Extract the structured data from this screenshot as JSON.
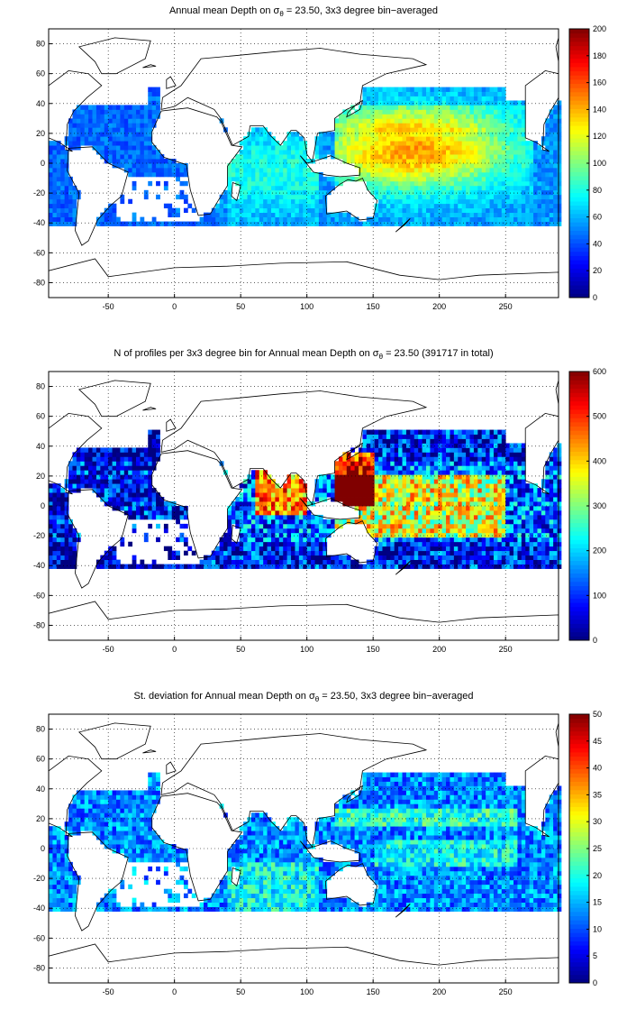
{
  "panels": [
    {
      "id": "mean",
      "title_before": "Annual mean Depth on ",
      "title_symbol": "σ",
      "title_sub": "θ",
      "title_after": " = 23.50, 3x3 degree bin−averaged",
      "colorbar_ticks": [
        "0",
        "20",
        "40",
        "60",
        "80",
        "100",
        "120",
        "140",
        "160",
        "180",
        "200"
      ],
      "clim": [
        0,
        200
      ]
    },
    {
      "id": "count",
      "title_before": "N of profiles per 3x3 degree bin for Annual mean Depth on ",
      "title_symbol": "σ",
      "title_sub": "θ",
      "title_after": " = 23.50 (391717 in total)",
      "colorbar_ticks": [
        "0",
        "100",
        "200",
        "300",
        "400",
        "500",
        "600"
      ],
      "clim": [
        0,
        600
      ]
    },
    {
      "id": "std",
      "title_before": "St. deviation for Annual mean Depth on ",
      "title_symbol": "σ",
      "title_sub": "θ",
      "title_after": " = 23.50, 3x3 degree bin−averaged",
      "colorbar_ticks": [
        "0",
        "5",
        "10",
        "15",
        "20",
        "25",
        "30",
        "35",
        "40",
        "45",
        "50"
      ],
      "clim": [
        0,
        50
      ]
    }
  ],
  "map_axes": {
    "x_ticks": [
      "-50",
      "0",
      "50",
      "100",
      "150",
      "200",
      "250"
    ],
    "y_ticks": [
      "80",
      "60",
      "40",
      "20",
      "0",
      "-20",
      "-40",
      "-60",
      "-80"
    ],
    "xlim": [
      -95,
      290
    ],
    "ylim": [
      -90,
      90
    ],
    "grid": "dotted",
    "colormap": "jet"
  }
}
